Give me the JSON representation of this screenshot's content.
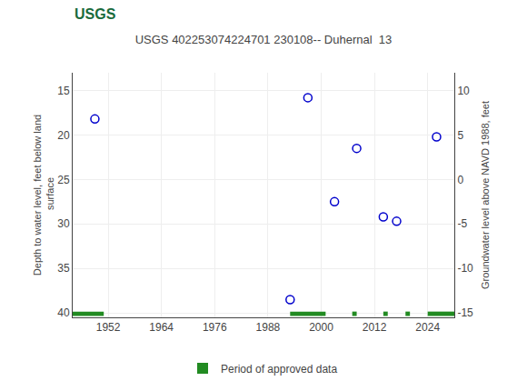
{
  "chart_data": {
    "type": "scatter",
    "title": "USGS 402253074224701 230108-- Duhernal  13",
    "annotations": [
      {
        "text": "USGS"
      }
    ],
    "y_label": "Depth to water level, feet below land\n surface",
    "y2_label": "Groundwater level above NAVD 1988, feet",
    "xlim": [
      1944,
      2030
    ],
    "xticks": [
      1952,
      1964,
      1976,
      1988,
      2000,
      2012,
      2024
    ],
    "ylim": [
      40.5,
      13.0
    ],
    "yticks": [
      15,
      20,
      25,
      30,
      35,
      40
    ],
    "y2lim": [
      -15.5,
      12.0
    ],
    "y2ticks": [
      -15,
      -10,
      -5,
      0,
      5,
      10
    ],
    "grid": true,
    "legend": "bottom",
    "series": [
      {
        "type": "scatter",
        "x": [
          1949,
          1993,
          1997,
          2003,
          2008,
          2014,
          2017,
          2026
        ],
        "values": [
          18.2,
          38.5,
          15.8,
          27.5,
          21.5,
          29.2,
          29.7,
          20.2
        ],
        "color": "#0000cc",
        "marker": "circle-open"
      },
      {
        "type": "bar",
        "orientation": "horizontal",
        "name": "Period of approved data",
        "color": "#228B22",
        "y": 40.1,
        "height": 0.5,
        "segments": [
          [
            1944,
            1951
          ],
          [
            1993,
            2001
          ],
          [
            2007,
            2008
          ],
          [
            2014,
            2015
          ],
          [
            2019,
            2020
          ],
          [
            2024,
            2030
          ]
        ]
      }
    ]
  }
}
